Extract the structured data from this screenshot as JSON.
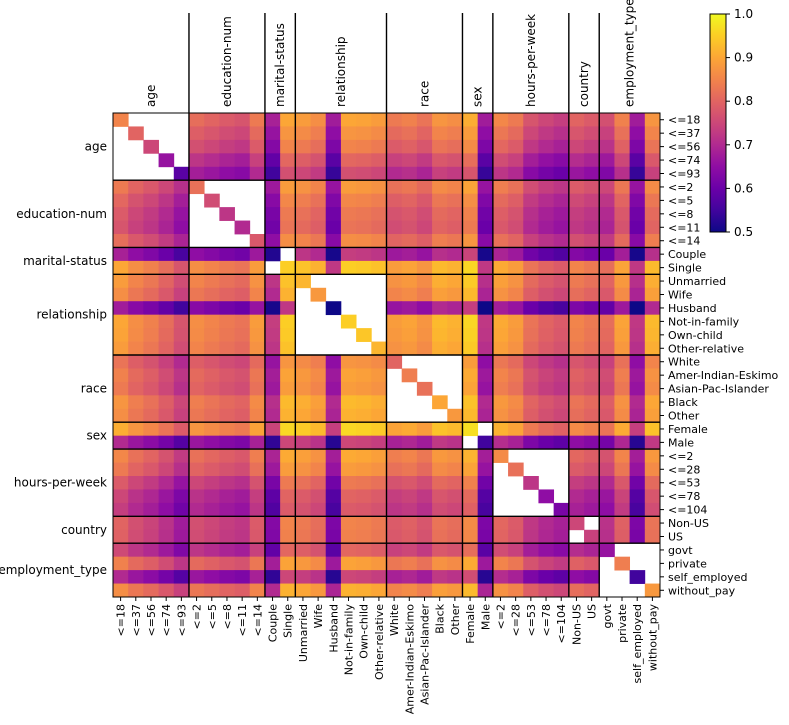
{
  "chart_data": {
    "type": "heatmap",
    "title": "",
    "groups": [
      {
        "name": "age",
        "categories": [
          "<=18",
          "<=37",
          "<=56",
          "<=74",
          "<=93"
        ]
      },
      {
        "name": "education-num",
        "categories": [
          "<=2",
          "<=5",
          "<=8",
          "<=11",
          "<=14"
        ]
      },
      {
        "name": "marital-status",
        "categories": [
          "Couple",
          "Single"
        ]
      },
      {
        "name": "relationship",
        "categories": [
          "Unmarried",
          "Wife",
          "Husband",
          "Not-in-family",
          "Own-child",
          "Other-relative"
        ]
      },
      {
        "name": "race",
        "categories": [
          "White",
          "Amer-Indian-Eskimo",
          "Asian-Pac-Islander",
          "Black",
          "Other"
        ]
      },
      {
        "name": "sex",
        "categories": [
          "Female",
          "Male"
        ]
      },
      {
        "name": "hours-per-week",
        "categories": [
          "<=2",
          "<=28",
          "<=53",
          "<=78",
          "<=104"
        ]
      },
      {
        "name": "country",
        "categories": [
          "Non-US",
          "US"
        ]
      },
      {
        "name": "employment_type",
        "categories": [
          "govt",
          "private",
          "self_employed",
          "without_pay"
        ]
      }
    ],
    "col_profile": [
      0.85,
      0.78,
      0.74,
      0.68,
      0.6,
      0.78,
      0.75,
      0.72,
      0.7,
      0.82,
      0.52,
      0.95,
      0.92,
      0.88,
      0.5,
      0.95,
      0.94,
      0.92,
      0.82,
      0.84,
      0.8,
      0.9,
      0.88,
      0.97,
      0.5,
      0.86,
      0.82,
      0.7,
      0.65,
      0.62,
      0.75,
      0.72,
      0.68,
      0.84,
      0.5,
      0.9
    ],
    "row_profile": [
      0.85,
      0.8,
      0.75,
      0.66,
      0.58,
      0.82,
      0.76,
      0.72,
      0.7,
      0.78,
      0.52,
      0.95,
      0.92,
      0.88,
      0.5,
      0.95,
      0.94,
      0.92,
      0.8,
      0.84,
      0.82,
      0.9,
      0.88,
      0.97,
      0.55,
      0.86,
      0.82,
      0.72,
      0.65,
      0.62,
      0.75,
      0.74,
      0.66,
      0.84,
      0.55,
      0.88
    ],
    "masked": "diagonal-blocks-except-self (cells within the same group are blank, except the diagonal)",
    "value_range": [
      0.5,
      1.0
    ],
    "colormap": "plasma",
    "colorbar": {
      "min": 0.5,
      "max": 1.0,
      "ticks": [
        0.5,
        0.6,
        0.7,
        0.8,
        0.9,
        1.0
      ],
      "tick_labels": [
        "0.5",
        "0.6",
        "0.7",
        "0.8",
        "0.9",
        "1.0"
      ]
    },
    "xlabel": "",
    "ylabel": ""
  }
}
